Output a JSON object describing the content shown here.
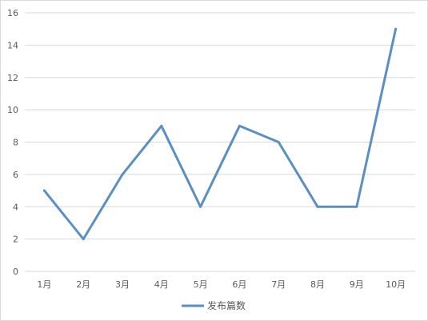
{
  "chart_data": {
    "type": "line",
    "categories": [
      "1月",
      "2月",
      "3月",
      "4月",
      "5月",
      "6月",
      "7月",
      "8月",
      "9月",
      "10月"
    ],
    "series": [
      {
        "name": "发布篇数",
        "values": [
          5,
          2,
          6,
          9,
          4,
          9,
          8,
          4,
          4,
          15
        ]
      }
    ],
    "ylim": [
      0,
      16
    ],
    "yticks": [
      0,
      2,
      4,
      6,
      8,
      10,
      12,
      14,
      16
    ],
    "grid": true,
    "legend": "bottom-center",
    "colors": {
      "line": "#5b8fc4",
      "grid": "#d9d9d9",
      "text": "#595959"
    }
  }
}
